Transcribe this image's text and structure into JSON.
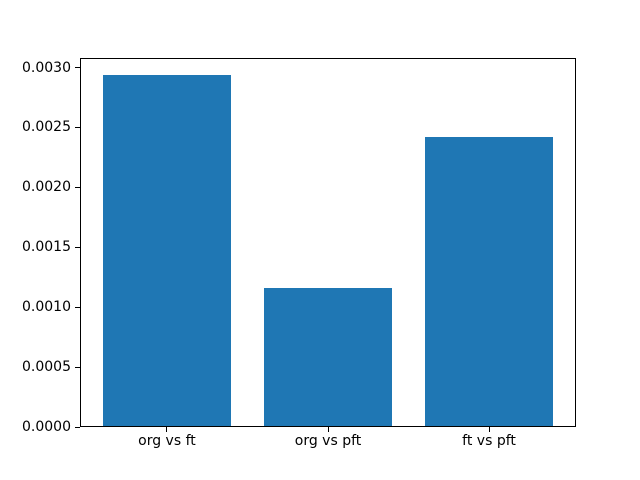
{
  "chart_data": {
    "type": "bar",
    "title": "",
    "xlabel": "",
    "ylabel": "",
    "categories": [
      "org vs ft",
      "org vs pft",
      "ft vs pft"
    ],
    "values": [
      0.00294,
      0.00116,
      0.00242
    ],
    "x": [
      0,
      1,
      2
    ],
    "bar_width": 0.8,
    "bar_color": "#1f77b4",
    "xlim": [
      -0.54,
      2.54
    ],
    "ylim": [
      0,
      0.00308
    ],
    "yticks": [
      0.0,
      0.0005,
      0.001,
      0.0015,
      0.002,
      0.0025,
      0.003
    ],
    "ytick_labels": [
      "0.0000",
      "0.0005",
      "0.0010",
      "0.0015",
      "0.0020",
      "0.0025",
      "0.0030"
    ],
    "grid": false,
    "legend": null,
    "background": "#ffffff",
    "text_color": "#000000",
    "spine_color": "#000000"
  }
}
